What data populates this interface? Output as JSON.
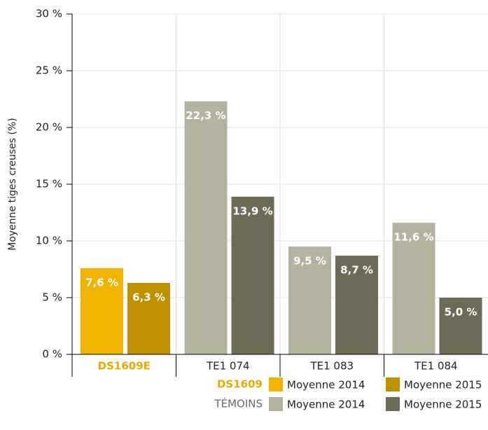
{
  "chart_data": {
    "type": "bar",
    "y_label": "Moyenne tiges creuses (%)",
    "categories": [
      "DS1609E",
      "TE1 074",
      "TE1 083",
      "TE1 084"
    ],
    "series": [
      {
        "values": [
          7.6,
          22.3,
          9.5,
          11.6
        ],
        "value_labels": [
          "7,6 %",
          "22,3 %",
          "9,5 %",
          "11,6 %"
        ],
        "colors": [
          "#f0b400",
          "#b3b29c",
          "#b3b29c",
          "#b3b29c"
        ]
      },
      {
        "values": [
          6.3,
          13.9,
          8.7,
          5.0
        ],
        "value_labels": [
          "6,3 %",
          "13,9 %",
          "8,7 %",
          "5,0 %"
        ],
        "colors": [
          "#c19000",
          "#6d6a55",
          "#6d6a55",
          "#6d6a55"
        ]
      }
    ],
    "ylim": [
      0,
      30
    ],
    "yticks": [
      {
        "value": 0,
        "label": "0 %"
      },
      {
        "value": 5,
        "label": "5 %"
      },
      {
        "value": 10,
        "label": "10 %"
      },
      {
        "value": 15,
        "label": "15 %"
      },
      {
        "value": 20,
        "label": "20 %"
      },
      {
        "value": 25,
        "label": "25 %"
      },
      {
        "value": 30,
        "label": "30 %"
      }
    ],
    "grid": true,
    "legend": [
      {
        "group": "DS1609",
        "entries": [
          {
            "name": "Moyenne 2014",
            "color": "#f0b400"
          },
          {
            "name": "Moyenne 2015",
            "color": "#c19000"
          }
        ]
      },
      {
        "group": "TÉMOINS",
        "entries": [
          {
            "name": "Moyenne 2014",
            "color": "#b3b29c"
          },
          {
            "name": "Moyenne 2015",
            "color": "#6d6a55"
          }
        ]
      }
    ]
  }
}
